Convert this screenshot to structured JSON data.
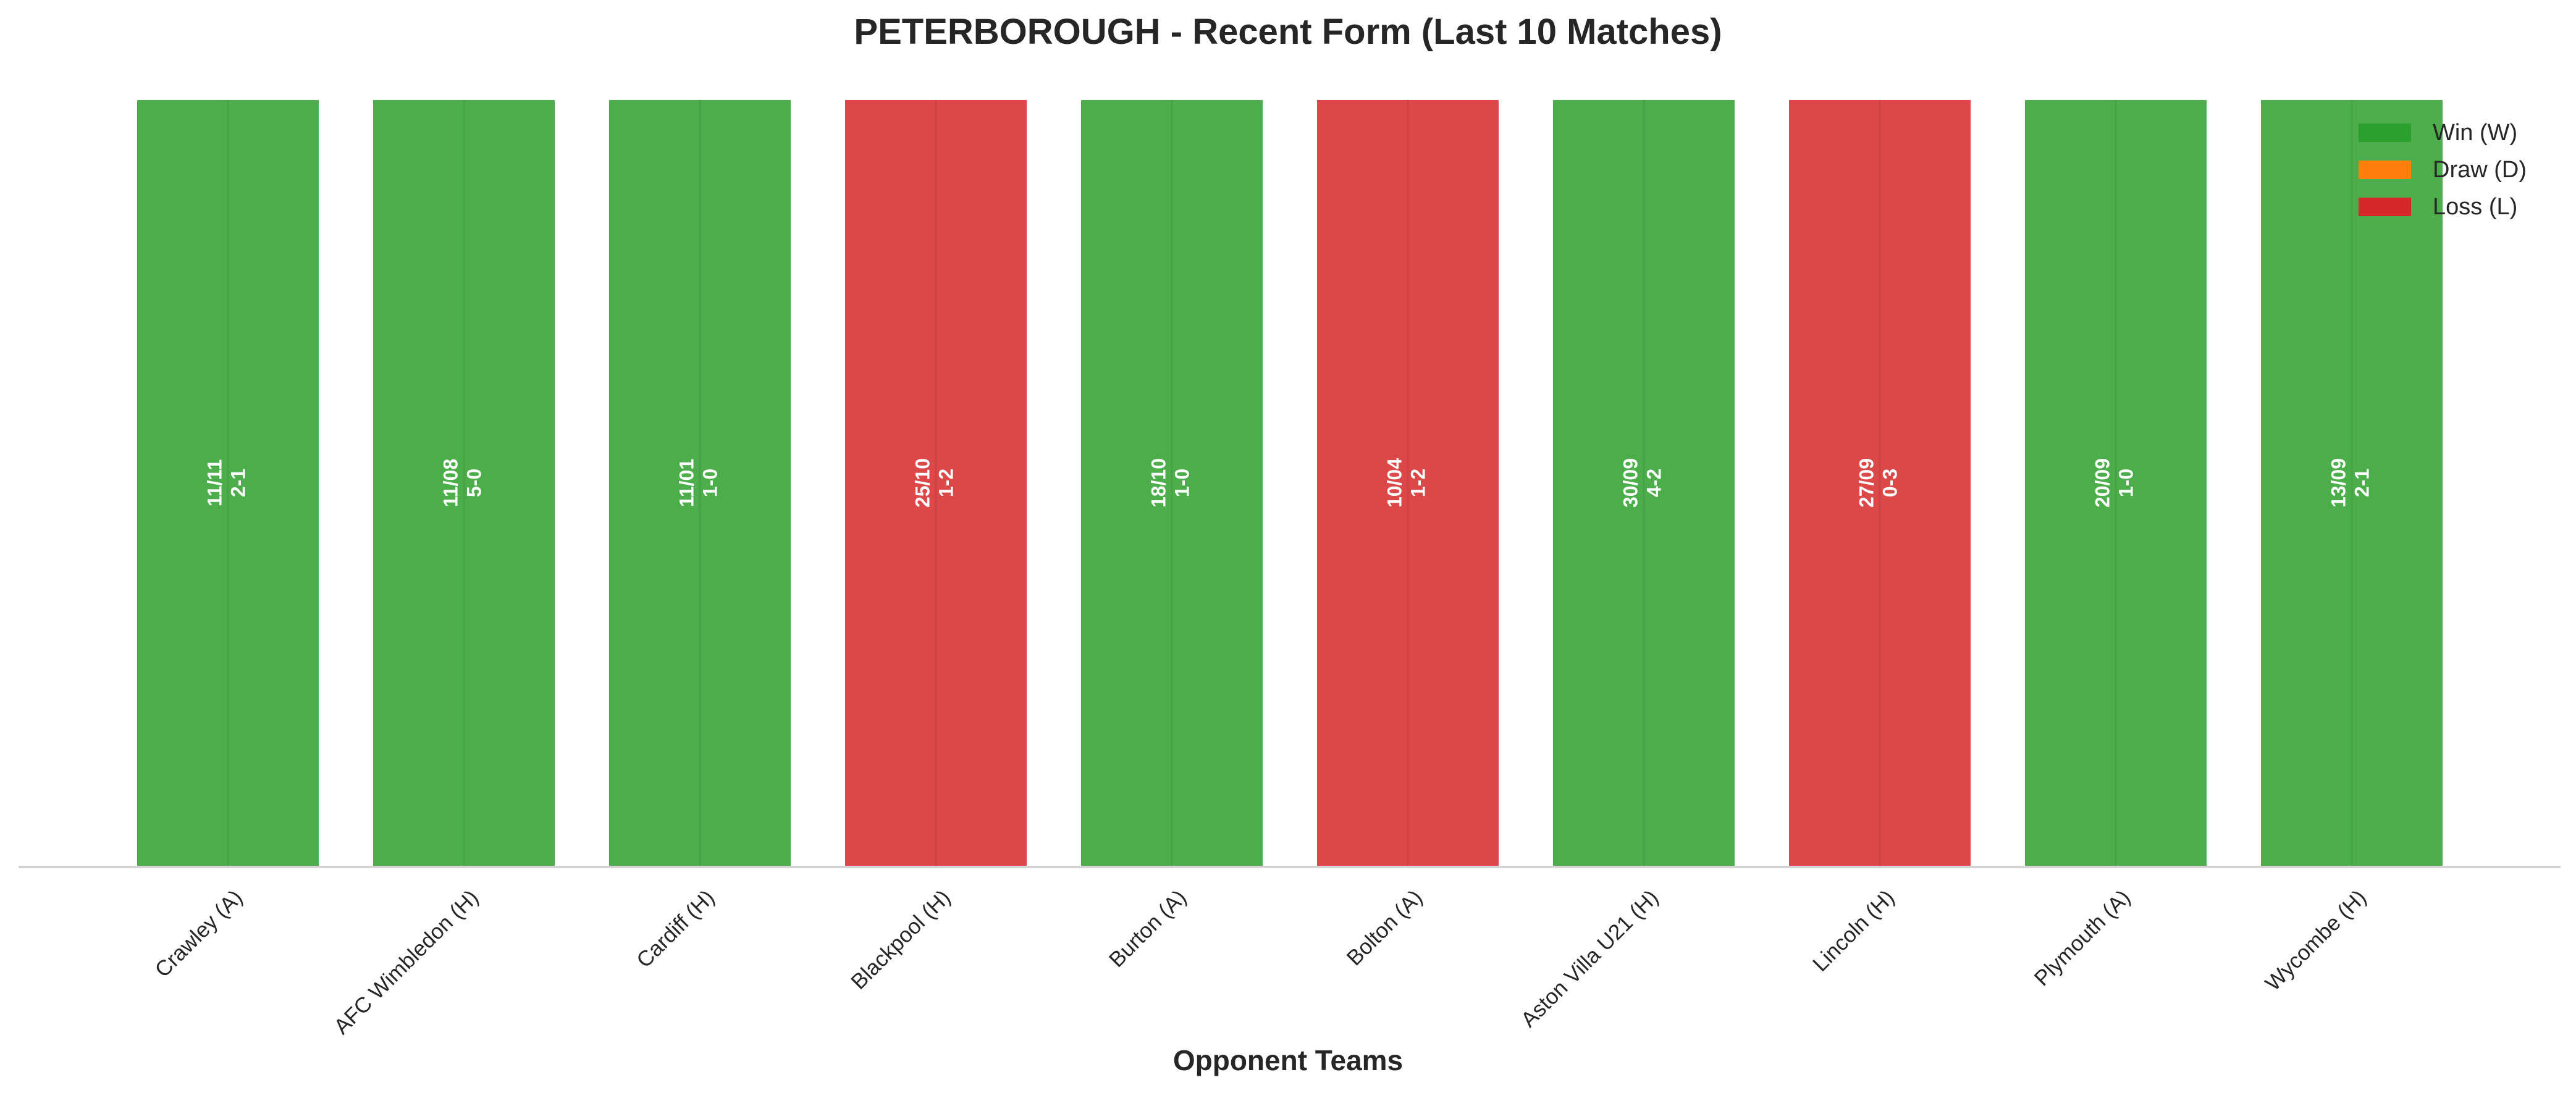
{
  "colors": {
    "win": "#2ca02c",
    "draw": "#ff7f0e",
    "loss": "#d62728",
    "axis": "#cccccc"
  },
  "chart_data": {
    "type": "bar",
    "title": "PETERBOROUGH - Recent Form (Last 10 Matches)",
    "xlabel": "Opponent Teams",
    "ylabel": "",
    "grid": false,
    "legend_position": "top-right",
    "categories": [
      "Crawley (A)",
      "AFC Wimbledon (H)",
      "Cardiff (H)",
      "Blackpool (H)",
      "Burton (A)",
      "Bolton (A)",
      "Aston Villa U21 (H)",
      "Lincoln (H)",
      "Plymouth (A)",
      "Wycombe (H)"
    ],
    "values": [
      1,
      1,
      1,
      1,
      1,
      1,
      1,
      1,
      1,
      1
    ],
    "results": [
      "W",
      "W",
      "W",
      "L",
      "W",
      "L",
      "W",
      "L",
      "W",
      "W"
    ],
    "dates": [
      "11/11",
      "11/08",
      "11/01",
      "25/10",
      "18/10",
      "10/04",
      "30/09",
      "27/09",
      "20/09",
      "13/09"
    ],
    "scores": [
      "2-1",
      "5-0",
      "1-0",
      "1-2",
      "1-0",
      "1-2",
      "4-2",
      "0-3",
      "1-0",
      "2-1"
    ],
    "legend": [
      {
        "key": "W",
        "label": "Win (W)",
        "color": "#2ca02c"
      },
      {
        "key": "D",
        "label": "Draw (D)",
        "color": "#ff7f0e"
      },
      {
        "key": "L",
        "label": "Loss (L)",
        "color": "#d62728"
      }
    ]
  }
}
